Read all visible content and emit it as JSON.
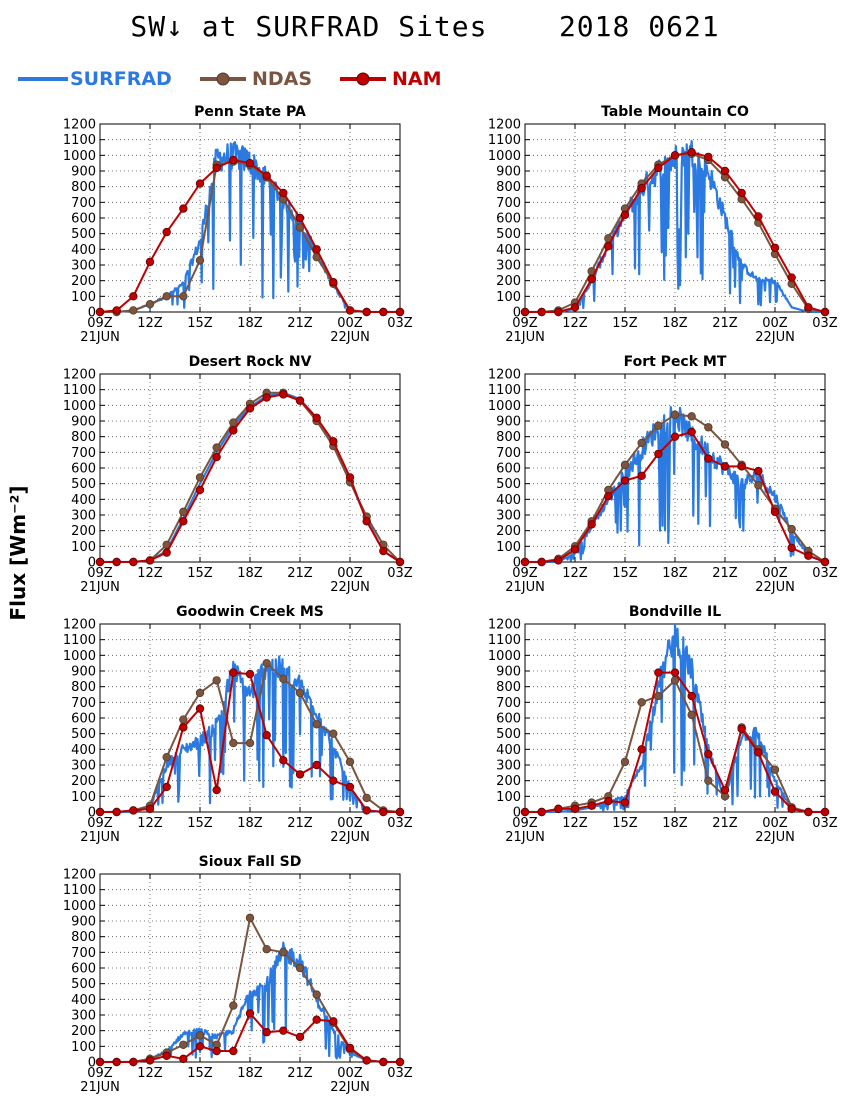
{
  "title": "SW↓ at SURFRAD Sites",
  "date": "2018 0621",
  "ylabel": "Flux [Wm⁻²]",
  "legend": [
    {
      "label": "SURFRAD",
      "color": "#2a7ae2",
      "marker": false
    },
    {
      "label": "NDAS",
      "color": "#7a5540",
      "marker": true
    },
    {
      "label": "NAM",
      "color": "#c00000",
      "marker": true
    }
  ],
  "chart_data": [
    {
      "type": "line",
      "title": "Penn State PA",
      "x": [
        9,
        10,
        11,
        12,
        13,
        14,
        15,
        16,
        17,
        18,
        19,
        20,
        21,
        22,
        23,
        24,
        25,
        26,
        27
      ],
      "xticks": [
        "09Z",
        "12Z",
        "15Z",
        "18Z",
        "21Z",
        "00Z",
        "03Z"
      ],
      "xtick_values": [
        9,
        12,
        15,
        18,
        21,
        24,
        27
      ],
      "date_labels": [
        {
          "x": 9,
          "label": "21JUN"
        },
        {
          "x": 24,
          "label": "22JUN"
        }
      ],
      "yticks": [
        0,
        100,
        200,
        300,
        400,
        500,
        600,
        700,
        800,
        900,
        1000,
        1100,
        1200
      ],
      "ylim": [
        0,
        1200
      ],
      "series": [
        {
          "name": "SURFRAD",
          "style": "noisy",
          "values": [
            0,
            0,
            10,
            50,
            100,
            180,
            450,
            980,
            1000,
            960,
            850,
            720,
            560,
            380,
            170,
            10,
            0,
            0,
            0
          ]
        },
        {
          "name": "NDAS",
          "values": [
            0,
            0,
            10,
            50,
            100,
            100,
            330,
            940,
            960,
            940,
            860,
            720,
            540,
            350,
            180,
            10,
            0,
            0,
            0
          ]
        },
        {
          "name": "NAM",
          "values": [
            0,
            10,
            100,
            320,
            510,
            660,
            820,
            920,
            970,
            950,
            870,
            760,
            600,
            400,
            190,
            10,
            0,
            0,
            0
          ]
        }
      ]
    },
    {
      "type": "line",
      "title": "Table Mountain CO",
      "x": [
        9,
        10,
        11,
        12,
        13,
        14,
        15,
        16,
        17,
        18,
        19,
        20,
        21,
        22,
        23,
        24,
        25,
        26,
        27
      ],
      "xticks": [
        "09Z",
        "12Z",
        "15Z",
        "18Z",
        "21Z",
        "00Z",
        "03Z"
      ],
      "xtick_values": [
        9,
        12,
        15,
        18,
        21,
        24,
        27
      ],
      "date_labels": [
        {
          "x": 9,
          "label": "21JUN"
        },
        {
          "x": 24,
          "label": "22JUN"
        }
      ],
      "yticks": [
        0,
        100,
        200,
        300,
        400,
        500,
        600,
        700,
        800,
        900,
        1000,
        1100,
        1200
      ],
      "ylim": [
        0,
        1200
      ],
      "series": [
        {
          "name": "SURFRAD",
          "style": "noisy",
          "values": [
            0,
            0,
            0,
            20,
            200,
            420,
            620,
            790,
            900,
            980,
            1020,
            900,
            600,
            300,
            200,
            200,
            30,
            0,
            0
          ]
        },
        {
          "name": "NDAS",
          "values": [
            0,
            0,
            10,
            60,
            260,
            470,
            660,
            820,
            940,
            1000,
            1010,
            970,
            860,
            720,
            570,
            370,
            180,
            20,
            0
          ]
        },
        {
          "name": "NAM",
          "values": [
            0,
            0,
            0,
            30,
            210,
            420,
            620,
            790,
            920,
            1000,
            1020,
            990,
            900,
            760,
            610,
            410,
            220,
            30,
            0
          ]
        }
      ]
    },
    {
      "type": "line",
      "title": "Desert Rock NV",
      "x": [
        9,
        10,
        11,
        12,
        13,
        14,
        15,
        16,
        17,
        18,
        19,
        20,
        21,
        22,
        23,
        24,
        25,
        26,
        27
      ],
      "xticks": [
        "09Z",
        "12Z",
        "15Z",
        "18Z",
        "21Z",
        "00Z",
        "03Z"
      ],
      "xtick_values": [
        9,
        12,
        15,
        18,
        21,
        24,
        27
      ],
      "date_labels": [
        {
          "x": 9,
          "label": "21JUN"
        },
        {
          "x": 24,
          "label": "22JUN"
        }
      ],
      "yticks": [
        0,
        100,
        200,
        300,
        400,
        500,
        600,
        700,
        800,
        900,
        1000,
        1100,
        1200
      ],
      "ylim": [
        0,
        1200
      ],
      "series": [
        {
          "name": "SURFRAD",
          "style": "smooth",
          "values": [
            0,
            0,
            0,
            10,
            70,
            280,
            500,
            700,
            870,
            990,
            1060,
            1080,
            1040,
            920,
            750,
            520,
            270,
            70,
            0
          ]
        },
        {
          "name": "NDAS",
          "values": [
            0,
            0,
            0,
            10,
            110,
            320,
            540,
            730,
            890,
            1010,
            1080,
            1080,
            1030,
            900,
            740,
            510,
            290,
            110,
            0
          ]
        },
        {
          "name": "NAM",
          "values": [
            0,
            0,
            0,
            10,
            60,
            260,
            460,
            670,
            840,
            980,
            1050,
            1070,
            1030,
            920,
            770,
            540,
            260,
            70,
            0
          ]
        }
      ]
    },
    {
      "type": "line",
      "title": "Fort Peck MT",
      "x": [
        9,
        10,
        11,
        12,
        13,
        14,
        15,
        16,
        17,
        18,
        19,
        20,
        21,
        22,
        23,
        24,
        25,
        26,
        27
      ],
      "xticks": [
        "09Z",
        "12Z",
        "15Z",
        "18Z",
        "21Z",
        "00Z",
        "03Z"
      ],
      "xtick_values": [
        9,
        12,
        15,
        18,
        21,
        24,
        27
      ],
      "date_labels": [
        {
          "x": 9,
          "label": "21JUN"
        },
        {
          "x": 24,
          "label": "22JUN"
        }
      ],
      "yticks": [
        0,
        100,
        200,
        300,
        400,
        500,
        600,
        700,
        800,
        900,
        1000,
        1100,
        1200
      ],
      "ylim": [
        0,
        1200
      ],
      "series": [
        {
          "name": "SURFRAD",
          "style": "noisy",
          "values": [
            0,
            0,
            0,
            60,
            230,
            400,
            560,
            720,
            860,
            950,
            800,
            700,
            600,
            500,
            550,
            420,
            200,
            40,
            0
          ]
        },
        {
          "name": "NDAS",
          "values": [
            0,
            0,
            20,
            100,
            260,
            460,
            620,
            760,
            870,
            940,
            930,
            860,
            750,
            620,
            490,
            340,
            210,
            70,
            0
          ]
        },
        {
          "name": "NAM",
          "values": [
            0,
            0,
            10,
            80,
            240,
            420,
            520,
            550,
            690,
            800,
            830,
            660,
            610,
            610,
            580,
            320,
            90,
            40,
            0
          ]
        }
      ]
    },
    {
      "type": "line",
      "title": "Goodwin Creek MS",
      "x": [
        9,
        10,
        11,
        12,
        13,
        14,
        15,
        16,
        17,
        18,
        19,
        20,
        21,
        22,
        23,
        24,
        25,
        26,
        27
      ],
      "xticks": [
        "09Z",
        "12Z",
        "15Z",
        "18Z",
        "21Z",
        "00Z",
        "03Z"
      ],
      "xtick_values": [
        9,
        12,
        15,
        18,
        21,
        24,
        27
      ],
      "date_labels": [
        {
          "x": 9,
          "label": "21JUN"
        },
        {
          "x": 24,
          "label": "22JUN"
        }
      ],
      "yticks": [
        0,
        100,
        200,
        300,
        400,
        500,
        600,
        700,
        800,
        900,
        1000,
        1100,
        1200
      ],
      "ylim": [
        0,
        1200
      ],
      "series": [
        {
          "name": "SURFRAD",
          "style": "noisy",
          "values": [
            0,
            0,
            0,
            30,
            300,
            400,
            450,
            560,
            900,
            750,
            950,
            900,
            800,
            650,
            420,
            150,
            10,
            0,
            0
          ]
        },
        {
          "name": "NDAS",
          "values": [
            0,
            0,
            10,
            40,
            350,
            590,
            760,
            840,
            440,
            440,
            950,
            850,
            760,
            560,
            500,
            320,
            90,
            10,
            0
          ]
        },
        {
          "name": "NAM",
          "values": [
            0,
            0,
            10,
            20,
            160,
            540,
            660,
            140,
            890,
            880,
            490,
            330,
            240,
            300,
            200,
            160,
            10,
            0,
            0
          ]
        }
      ]
    },
    {
      "type": "line",
      "title": "Bondville IL",
      "x": [
        9,
        10,
        11,
        12,
        13,
        14,
        15,
        16,
        17,
        18,
        19,
        20,
        21,
        22,
        23,
        24,
        25,
        26,
        27
      ],
      "xticks": [
        "09Z",
        "12Z",
        "15Z",
        "18Z",
        "21Z",
        "00Z",
        "03Z"
      ],
      "xtick_values": [
        9,
        12,
        15,
        18,
        21,
        24,
        27
      ],
      "date_labels": [
        {
          "x": 9,
          "label": "21JUN"
        },
        {
          "x": 24,
          "label": "22JUN"
        }
      ],
      "yticks": [
        0,
        100,
        200,
        300,
        400,
        500,
        600,
        700,
        800,
        900,
        1000,
        1100,
        1200
      ],
      "ylim": [
        0,
        1200
      ],
      "series": [
        {
          "name": "SURFRAD",
          "style": "noisy",
          "values": [
            0,
            0,
            0,
            10,
            30,
            60,
            100,
            300,
            800,
            1150,
            900,
            400,
            80,
            500,
            500,
            200,
            20,
            0,
            0
          ]
        },
        {
          "name": "NDAS",
          "values": [
            0,
            0,
            20,
            40,
            60,
            100,
            320,
            700,
            740,
            840,
            620,
            200,
            100,
            540,
            400,
            270,
            30,
            0,
            0
          ]
        },
        {
          "name": "NAM",
          "values": [
            0,
            0,
            20,
            20,
            40,
            70,
            60,
            400,
            890,
            890,
            740,
            370,
            140,
            530,
            380,
            130,
            20,
            0,
            0
          ]
        }
      ]
    },
    {
      "type": "line",
      "title": "Sioux Fall SD",
      "x": [
        9,
        10,
        11,
        12,
        13,
        14,
        15,
        16,
        17,
        18,
        19,
        20,
        21,
        22,
        23,
        24,
        25,
        26,
        27
      ],
      "xticks": [
        "09Z",
        "12Z",
        "15Z",
        "18Z",
        "21Z",
        "00Z",
        "03Z"
      ],
      "xtick_values": [
        9,
        12,
        15,
        18,
        21,
        24,
        27
      ],
      "date_labels": [
        {
          "x": 9,
          "label": "21JUN"
        },
        {
          "x": 24,
          "label": "22JUN"
        }
      ],
      "yticks": [
        0,
        100,
        200,
        300,
        400,
        500,
        600,
        700,
        800,
        900,
        1000,
        1100,
        1200
      ],
      "ylim": [
        0,
        1200
      ],
      "series": [
        {
          "name": "SURFRAD",
          "style": "noisy",
          "values": [
            0,
            0,
            0,
            20,
            70,
            180,
            200,
            160,
            200,
            450,
            500,
            700,
            650,
            400,
            200,
            60,
            10,
            0,
            0
          ]
        },
        {
          "name": "NDAS",
          "values": [
            0,
            0,
            0,
            20,
            60,
            110,
            170,
            110,
            360,
            920,
            720,
            700,
            600,
            430,
            250,
            80,
            10,
            0,
            0
          ]
        },
        {
          "name": "NAM",
          "values": [
            0,
            0,
            0,
            10,
            40,
            20,
            100,
            70,
            70,
            310,
            190,
            200,
            160,
            270,
            260,
            90,
            10,
            0,
            0
          ]
        }
      ]
    }
  ]
}
